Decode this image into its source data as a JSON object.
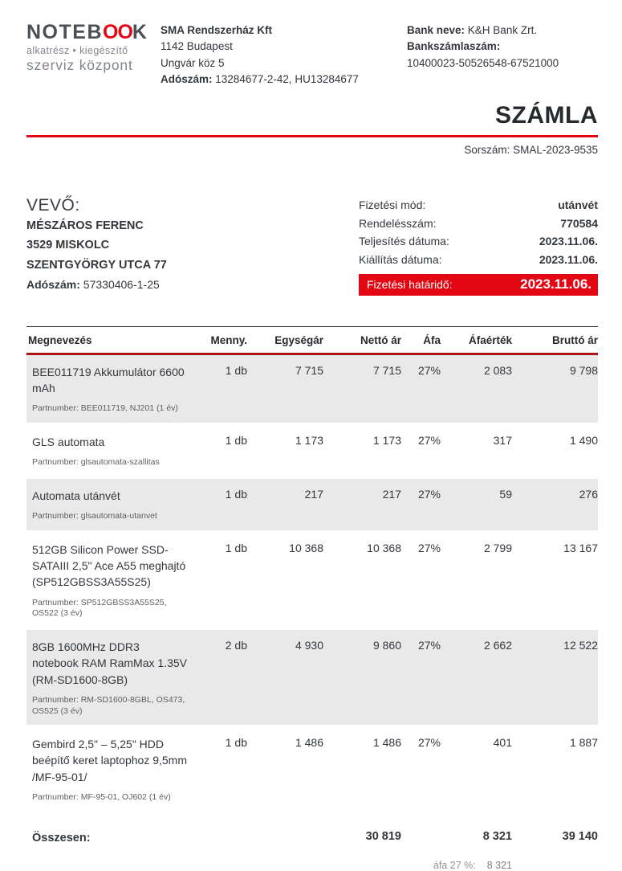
{
  "logo": {
    "name_prefix": "NOTEB",
    "name_oo": "OO",
    "name_suffix": "K",
    "tagline1": "alkatrész • kiegészítő",
    "tagline2": "szerviz központ"
  },
  "seller": {
    "name": "SMA Rendszerház Kft",
    "city": "1142 Budapest",
    "street": "Ungvár köz 5",
    "tax_label": "Adószám:",
    "tax_value": "13284677-2-42, HU13284677"
  },
  "bank": {
    "name_label": "Bank neve:",
    "name_value": "K&H Bank Zrt.",
    "account_label": "Bankszámlaszám:",
    "account_value": "10400023-50526548-67521000"
  },
  "invoice": {
    "title": "SZÁMLA",
    "serial_label": "Sorszám:",
    "serial_value": "SMAL-2023-9535"
  },
  "buyer": {
    "label": "VEVŐ:",
    "name": "MÉSZÁROS FERENC",
    "city": "3529 MISKOLC",
    "street": "SZENTGYÖRGY UTCA 77",
    "tax_label": "Adószám:",
    "tax_value": "57330406-1-25"
  },
  "payment": {
    "rows": [
      {
        "label": "Fizetési mód:",
        "value": "utánvét"
      },
      {
        "label": "Rendelésszám:",
        "value": "770584"
      },
      {
        "label": "Teljesítés dátuma:",
        "value": "2023.11.06."
      },
      {
        "label": "Kiállítás dátuma:",
        "value": "2023.11.06."
      }
    ],
    "due_label": "Fizetési határidő:",
    "due_value": "2023.11.06."
  },
  "table": {
    "headers": [
      "Megnevezés",
      "Menny.",
      "Egységár",
      "Nettó ár",
      "Áfa",
      "Áfaérték",
      "Bruttó ár"
    ],
    "rows": [
      {
        "name": "BEE011719 Akkumulátor 6600 mAh",
        "partnumber": "Partnumber: BEE011719, NJ201 (1 év)",
        "qty": "1 db",
        "unit_price": "7 715",
        "net": "7 715",
        "vat": "27%",
        "vat_value": "2 083",
        "gross": "9 798"
      },
      {
        "name": "GLS automata",
        "partnumber": "Partnumber: glsautomata-szallitas",
        "qty": "1 db",
        "unit_price": "1 173",
        "net": "1 173",
        "vat": "27%",
        "vat_value": "317",
        "gross": "1 490"
      },
      {
        "name": "Automata utánvét",
        "partnumber": "Partnumber: glsautomata-utanvet",
        "qty": "1 db",
        "unit_price": "217",
        "net": "217",
        "vat": "27%",
        "vat_value": "59",
        "gross": "276"
      },
      {
        "name": "512GB Silicon Power SSD-SATAIII 2,5\" Ace A55 meghajtó (SP512GBSS3A55S25)",
        "partnumber": "Partnumber: SP512GBSS3A55S25, OS522 (3 év)",
        "qty": "1 db",
        "unit_price": "10 368",
        "net": "10 368",
        "vat": "27%",
        "vat_value": "2 799",
        "gross": "13 167"
      },
      {
        "name": "8GB 1600MHz DDR3 notebook RAM RamMax 1.35V (RM-SD1600-8GB)",
        "partnumber": "Partnumber: RM-SD1600-8GBL, OS473, OS525 (3 év)",
        "qty": "2 db",
        "unit_price": "4 930",
        "net": "9 860",
        "vat": "27%",
        "vat_value": "2 662",
        "gross": "12 522"
      },
      {
        "name": "Gembird 2,5\" – 5,25\" HDD beépítő keret laptophoz 9,5mm /MF-95-01/",
        "partnumber": "Partnumber: MF-95-01, OJ602 (1 év)",
        "qty": "1 db",
        "unit_price": "1 486",
        "net": "1 486",
        "vat": "27%",
        "vat_value": "401",
        "gross": "1 887"
      }
    ],
    "totals": {
      "label": "Összesen:",
      "net": "30 819",
      "vat_value": "8 321",
      "gross": "39 140"
    },
    "vat_note": {
      "label": "áfa 27 %:",
      "value": "8 321"
    }
  },
  "colors": {
    "accent_red": "#e30613",
    "header_rule_red": "#b11217",
    "row_shade_gray": "#e9e9e9"
  }
}
